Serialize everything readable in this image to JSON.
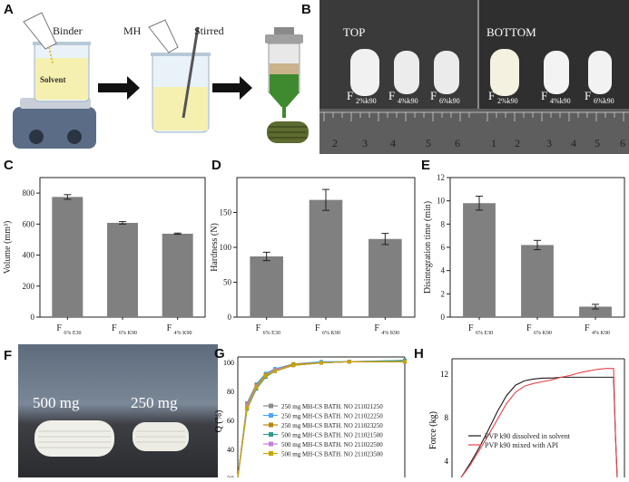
{
  "panels": {
    "A": {
      "label": "A",
      "step1": "Binder",
      "step1_solvent": "Solvent",
      "step2_mh": "MH",
      "step2_stirred": "Stirred"
    },
    "B": {
      "label": "B",
      "top_title": "TOP",
      "bottom_title": "BOTTOM",
      "tablet_labels_top": [
        {
          "f": "F",
          "sub": "2%k90"
        },
        {
          "f": "F",
          "sub": "4%k90"
        },
        {
          "f": "F",
          "sub": "6%k90"
        }
      ],
      "tablet_labels_bottom": [
        {
          "f": "F",
          "sub": "2%k90"
        },
        {
          "f": "F",
          "sub": "4%k90"
        },
        {
          "f": "F",
          "sub": "6%k90"
        }
      ],
      "ruler_left": [
        "2",
        "3",
        "4",
        "5",
        "6"
      ],
      "ruler_right": [
        "1",
        "2",
        "3",
        "4",
        "5",
        "6"
      ]
    },
    "F": {
      "label": "F",
      "left_text": "500 mg",
      "right_text": "250 mg"
    },
    "G": {
      "label": "G",
      "ylabel": "Q (%)",
      "yticks": [
        "100",
        "80",
        "60",
        "40",
        "20"
      ]
    },
    "H": {
      "label": "H",
      "ylabel": "Force (kg)",
      "yticks": [
        "12",
        "8",
        "4"
      ]
    }
  },
  "chart_data": [
    {
      "id": "C",
      "panel_label": "C",
      "type": "bar",
      "ylabel": "Volume (mm³)",
      "categories": [
        {
          "main": "F",
          "sub": "6% E30"
        },
        {
          "main": "F",
          "sub": "6% K90"
        },
        {
          "main": "F",
          "sub": "4% K90"
        }
      ],
      "values": [
        775,
        608,
        538
      ],
      "errors": [
        15,
        8,
        4
      ],
      "ylim": [
        0,
        900
      ],
      "yticks": [
        0,
        200,
        400,
        600,
        800
      ],
      "color": "#808080"
    },
    {
      "id": "D",
      "panel_label": "D",
      "type": "bar",
      "ylabel": "Hardness (N)",
      "categories": [
        {
          "main": "F",
          "sub": "6% E30"
        },
        {
          "main": "F",
          "sub": "6% K90"
        },
        {
          "main": "F",
          "sub": "4% K90"
        }
      ],
      "values": [
        87,
        168,
        112
      ],
      "errors": [
        6,
        15,
        8
      ],
      "ylim": [
        0,
        200
      ],
      "yticks": [
        0,
        50,
        100,
        150
      ],
      "color": "#808080"
    },
    {
      "id": "E",
      "panel_label": "E",
      "type": "bar",
      "ylabel": "Disintegration time (min)",
      "categories": [
        {
          "main": "F",
          "sub": "6% E30"
        },
        {
          "main": "F",
          "sub": "6% K90"
        },
        {
          "main": "F",
          "sub": "4% K90"
        }
      ],
      "values": [
        9.8,
        6.2,
        0.9
      ],
      "errors": [
        0.6,
        0.4,
        0.2
      ],
      "ylim": [
        0,
        12
      ],
      "yticks": [
        0,
        2,
        4,
        6,
        8,
        10,
        12
      ],
      "color": "#808080"
    },
    {
      "id": "G",
      "type": "line",
      "legend_position": "center-right",
      "x": [
        0,
        5,
        10,
        15,
        20,
        30,
        45,
        60,
        90
      ],
      "ylim": [
        0,
        102
      ],
      "series": [
        {
          "name": "250 mg MH-CS BATH. NO 211021250",
          "color": "#8c8c8c",
          "marker": "square",
          "values": [
            0,
            60,
            77,
            86,
            90,
            95,
            97,
            98,
            98
          ]
        },
        {
          "name": "250 mg MH-CS BATH. NO 211022250",
          "color": "#4da6ff",
          "marker": "circle",
          "values": [
            0,
            63,
            79,
            88,
            92,
            96,
            98,
            98,
            99
          ]
        },
        {
          "name": "250 mg MH-CS BATH. NO 211023250",
          "color": "#b8860b",
          "marker": "triangle",
          "values": [
            0,
            62,
            78,
            87,
            91,
            96,
            97,
            98,
            98
          ]
        },
        {
          "name": "500 mg MH-CS BATH. NO 211021500",
          "color": "#2e9b8f",
          "marker": "triangle-down",
          "values": [
            0,
            58,
            75,
            85,
            90,
            95,
            97,
            98,
            99
          ]
        },
        {
          "name": "500 mg MH-CS BATH. NO 211022500",
          "color": "#c77dd8",
          "marker": "diamond",
          "values": [
            0,
            61,
            77,
            86,
            91,
            95,
            97,
            98,
            98
          ]
        },
        {
          "name": "500 mg MH-CS BATH. NO 211023500",
          "color": "#c9a400",
          "marker": "triangle-left",
          "values": [
            0,
            59,
            76,
            86,
            90,
            95,
            97,
            98,
            98
          ]
        }
      ]
    },
    {
      "id": "H",
      "type": "line",
      "legend_position": "bottom-right",
      "ylim": [
        0,
        13.5
      ],
      "series": [
        {
          "name": "PVP k90 dissolved in solvent",
          "color": "#1a1a1a",
          "x": [
            0,
            10,
            20,
            30,
            40,
            50,
            60,
            70,
            80,
            90,
            100,
            110,
            120,
            130,
            140,
            150,
            160,
            168,
            170,
            172
          ],
          "values": [
            0,
            1.6,
            3.4,
            5.4,
            7.5,
            9.3,
            10.5,
            11.0,
            11.2,
            11.3,
            11.3,
            11.4,
            11.4,
            11.4,
            11.4,
            11.4,
            11.4,
            11.4,
            5.0,
            0
          ]
        },
        {
          "name": "PVP k90 mixed with API",
          "color": "#e8434a",
          "x": [
            0,
            10,
            20,
            30,
            40,
            50,
            60,
            70,
            80,
            90,
            100,
            110,
            120,
            130,
            140,
            150,
            160,
            168,
            170,
            172
          ],
          "values": [
            0,
            1.4,
            3.1,
            4.8,
            6.6,
            8.4,
            9.7,
            10.4,
            10.7,
            10.9,
            11.1,
            11.4,
            11.6,
            11.9,
            12.1,
            12.3,
            12.4,
            12.4,
            5.0,
            0
          ]
        }
      ]
    }
  ]
}
